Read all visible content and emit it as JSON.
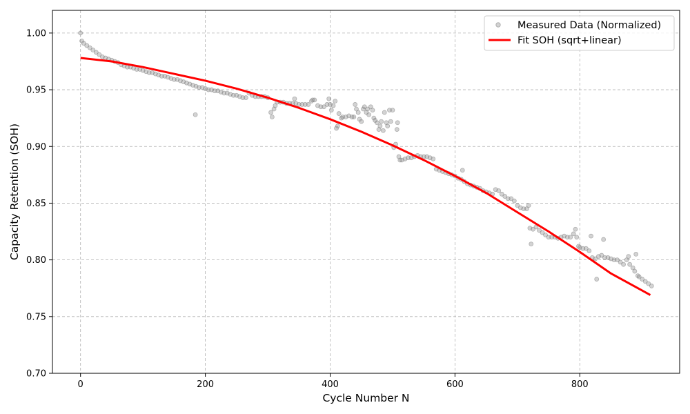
{
  "chart_data": {
    "type": "scatter",
    "xlabel": "Cycle Number N",
    "ylabel": "Capacity Retention (SOH)",
    "xlim": [
      -45,
      960
    ],
    "ylim": [
      0.7,
      1.02
    ],
    "x_ticks": [
      0,
      200,
      400,
      600,
      800
    ],
    "y_ticks": [
      0.7,
      0.75,
      0.8,
      0.85,
      0.9,
      0.95,
      1.0
    ],
    "y_tick_format": 2,
    "grid": true,
    "legend_position": "top-right",
    "series": [
      {
        "name": "Measured Data (Normalized)",
        "kind": "scatter",
        "color": "#808080",
        "points": [
          [
            0,
            1.0
          ],
          [
            2,
            0.993
          ],
          [
            5,
            0.991
          ],
          [
            10,
            0.989
          ],
          [
            15,
            0.987
          ],
          [
            20,
            0.985
          ],
          [
            25,
            0.983
          ],
          [
            30,
            0.981
          ],
          [
            35,
            0.979
          ],
          [
            40,
            0.978
          ],
          [
            45,
            0.977
          ],
          [
            50,
            0.976
          ],
          [
            55,
            0.975
          ],
          [
            60,
            0.974
          ],
          [
            65,
            0.972
          ],
          [
            70,
            0.971
          ],
          [
            75,
            0.97
          ],
          [
            80,
            0.97
          ],
          [
            85,
            0.969
          ],
          [
            90,
            0.968
          ],
          [
            95,
            0.968
          ],
          [
            100,
            0.967
          ],
          [
            105,
            0.966
          ],
          [
            110,
            0.965
          ],
          [
            115,
            0.965
          ],
          [
            120,
            0.964
          ],
          [
            125,
            0.963
          ],
          [
            130,
            0.962
          ],
          [
            135,
            0.962
          ],
          [
            140,
            0.961
          ],
          [
            145,
            0.96
          ],
          [
            150,
            0.959
          ],
          [
            155,
            0.959
          ],
          [
            160,
            0.958
          ],
          [
            165,
            0.957
          ],
          [
            170,
            0.956
          ],
          [
            175,
            0.955
          ],
          [
            180,
            0.954
          ],
          [
            184,
            0.928
          ],
          [
            185,
            0.953
          ],
          [
            190,
            0.952
          ],
          [
            195,
            0.952
          ],
          [
            200,
            0.951
          ],
          [
            205,
            0.95
          ],
          [
            210,
            0.95
          ],
          [
            215,
            0.949
          ],
          [
            220,
            0.949
          ],
          [
            225,
            0.948
          ],
          [
            230,
            0.947
          ],
          [
            235,
            0.947
          ],
          [
            240,
            0.946
          ],
          [
            245,
            0.945
          ],
          [
            250,
            0.945
          ],
          [
            255,
            0.944
          ],
          [
            260,
            0.943
          ],
          [
            265,
            0.943
          ],
          [
            270,
            0.947
          ],
          [
            275,
            0.945
          ],
          [
            280,
            0.944
          ],
          [
            285,
            0.944
          ],
          [
            290,
            0.944
          ],
          [
            295,
            0.944
          ],
          [
            300,
            0.943
          ],
          [
            305,
            0.93
          ],
          [
            307,
            0.926
          ],
          [
            310,
            0.933
          ],
          [
            312,
            0.936
          ],
          [
            315,
            0.939
          ],
          [
            320,
            0.939
          ],
          [
            325,
            0.939
          ],
          [
            330,
            0.938
          ],
          [
            335,
            0.938
          ],
          [
            340,
            0.938
          ],
          [
            343,
            0.942
          ],
          [
            345,
            0.938
          ],
          [
            350,
            0.937
          ],
          [
            355,
            0.937
          ],
          [
            360,
            0.937
          ],
          [
            365,
            0.937
          ],
          [
            370,
            0.94
          ],
          [
            372,
            0.941
          ],
          [
            375,
            0.941
          ],
          [
            380,
            0.936
          ],
          [
            385,
            0.935
          ],
          [
            390,
            0.935
          ],
          [
            395,
            0.937
          ],
          [
            398,
            0.942
          ],
          [
            400,
            0.937
          ],
          [
            402,
            0.932
          ],
          [
            405,
            0.936
          ],
          [
            408,
            0.94
          ],
          [
            410,
            0.916
          ],
          [
            412,
            0.918
          ],
          [
            414,
            0.929
          ],
          [
            418,
            0.925
          ],
          [
            420,
            0.926
          ],
          [
            425,
            0.926
          ],
          [
            430,
            0.927
          ],
          [
            435,
            0.926
          ],
          [
            438,
            0.926
          ],
          [
            440,
            0.937
          ],
          [
            442,
            0.933
          ],
          [
            445,
            0.93
          ],
          [
            447,
            0.924
          ],
          [
            450,
            0.922
          ],
          [
            453,
            0.933
          ],
          [
            455,
            0.935
          ],
          [
            458,
            0.93
          ],
          [
            460,
            0.933
          ],
          [
            462,
            0.928
          ],
          [
            465,
            0.935
          ],
          [
            468,
            0.932
          ],
          [
            470,
            0.925
          ],
          [
            472,
            0.923
          ],
          [
            475,
            0.921
          ],
          [
            478,
            0.915
          ],
          [
            480,
            0.918
          ],
          [
            482,
            0.922
          ],
          [
            485,
            0.914
          ],
          [
            487,
            0.93
          ],
          [
            490,
            0.921
          ],
          [
            492,
            0.918
          ],
          [
            495,
            0.932
          ],
          [
            497,
            0.922
          ],
          [
            500,
            0.932
          ],
          [
            502,
            0.899
          ],
          [
            505,
            0.902
          ],
          [
            507,
            0.915
          ],
          [
            508,
            0.921
          ],
          [
            510,
            0.891
          ],
          [
            512,
            0.888
          ],
          [
            515,
            0.888
          ],
          [
            520,
            0.889
          ],
          [
            525,
            0.89
          ],
          [
            530,
            0.89
          ],
          [
            535,
            0.891
          ],
          [
            540,
            0.892
          ],
          [
            545,
            0.891
          ],
          [
            550,
            0.891
          ],
          [
            555,
            0.891
          ],
          [
            560,
            0.89
          ],
          [
            565,
            0.889
          ],
          [
            570,
            0.88
          ],
          [
            575,
            0.879
          ],
          [
            580,
            0.878
          ],
          [
            585,
            0.877
          ],
          [
            590,
            0.876
          ],
          [
            595,
            0.875
          ],
          [
            600,
            0.874
          ],
          [
            605,
            0.872
          ],
          [
            610,
            0.871
          ],
          [
            612,
            0.879
          ],
          [
            615,
            0.869
          ],
          [
            620,
            0.867
          ],
          [
            625,
            0.866
          ],
          [
            630,
            0.865
          ],
          [
            635,
            0.864
          ],
          [
            640,
            0.863
          ],
          [
            645,
            0.861
          ],
          [
            650,
            0.86
          ],
          [
            655,
            0.859
          ],
          [
            660,
            0.858
          ],
          [
            665,
            0.862
          ],
          [
            670,
            0.861
          ],
          [
            675,
            0.858
          ],
          [
            680,
            0.856
          ],
          [
            685,
            0.854
          ],
          [
            690,
            0.854
          ],
          [
            695,
            0.852
          ],
          [
            700,
            0.848
          ],
          [
            705,
            0.846
          ],
          [
            710,
            0.845
          ],
          [
            715,
            0.845
          ],
          [
            718,
            0.848
          ],
          [
            720,
            0.828
          ],
          [
            722,
            0.814
          ],
          [
            725,
            0.827
          ],
          [
            730,
            0.829
          ],
          [
            735,
            0.826
          ],
          [
            740,
            0.824
          ],
          [
            745,
            0.822
          ],
          [
            750,
            0.82
          ],
          [
            755,
            0.82
          ],
          [
            760,
            0.82
          ],
          [
            765,
            0.819
          ],
          [
            770,
            0.82
          ],
          [
            775,
            0.821
          ],
          [
            780,
            0.82
          ],
          [
            785,
            0.82
          ],
          [
            790,
            0.823
          ],
          [
            793,
            0.827
          ],
          [
            795,
            0.82
          ],
          [
            798,
            0.812
          ],
          [
            800,
            0.811
          ],
          [
            805,
            0.81
          ],
          [
            810,
            0.81
          ],
          [
            815,
            0.808
          ],
          [
            818,
            0.821
          ],
          [
            820,
            0.802
          ],
          [
            825,
            0.801
          ],
          [
            827,
            0.783
          ],
          [
            830,
            0.803
          ],
          [
            835,
            0.804
          ],
          [
            838,
            0.818
          ],
          [
            840,
            0.802
          ],
          [
            845,
            0.802
          ],
          [
            850,
            0.801
          ],
          [
            855,
            0.8
          ],
          [
            860,
            0.8
          ],
          [
            865,
            0.798
          ],
          [
            870,
            0.796
          ],
          [
            875,
            0.8
          ],
          [
            878,
            0.803
          ],
          [
            880,
            0.796
          ],
          [
            885,
            0.793
          ],
          [
            888,
            0.79
          ],
          [
            890,
            0.805
          ],
          [
            893,
            0.786
          ],
          [
            895,
            0.785
          ],
          [
            900,
            0.783
          ],
          [
            905,
            0.781
          ],
          [
            910,
            0.779
          ],
          [
            915,
            0.777
          ]
        ]
      },
      {
        "name": "Fit SOH (sqrt+linear)",
        "kind": "line",
        "color": "#ff0000",
        "points": [
          [
            0,
            0.978
          ],
          [
            50,
            0.975
          ],
          [
            100,
            0.97
          ],
          [
            150,
            0.964
          ],
          [
            200,
            0.958
          ],
          [
            250,
            0.951
          ],
          [
            300,
            0.943
          ],
          [
            350,
            0.934
          ],
          [
            400,
            0.924
          ],
          [
            450,
            0.913
          ],
          [
            500,
            0.901
          ],
          [
            550,
            0.888
          ],
          [
            600,
            0.874
          ],
          [
            650,
            0.859
          ],
          [
            700,
            0.842
          ],
          [
            750,
            0.825
          ],
          [
            800,
            0.807
          ],
          [
            850,
            0.788
          ],
          [
            900,
            0.773
          ],
          [
            913,
            0.769
          ]
        ]
      }
    ]
  }
}
